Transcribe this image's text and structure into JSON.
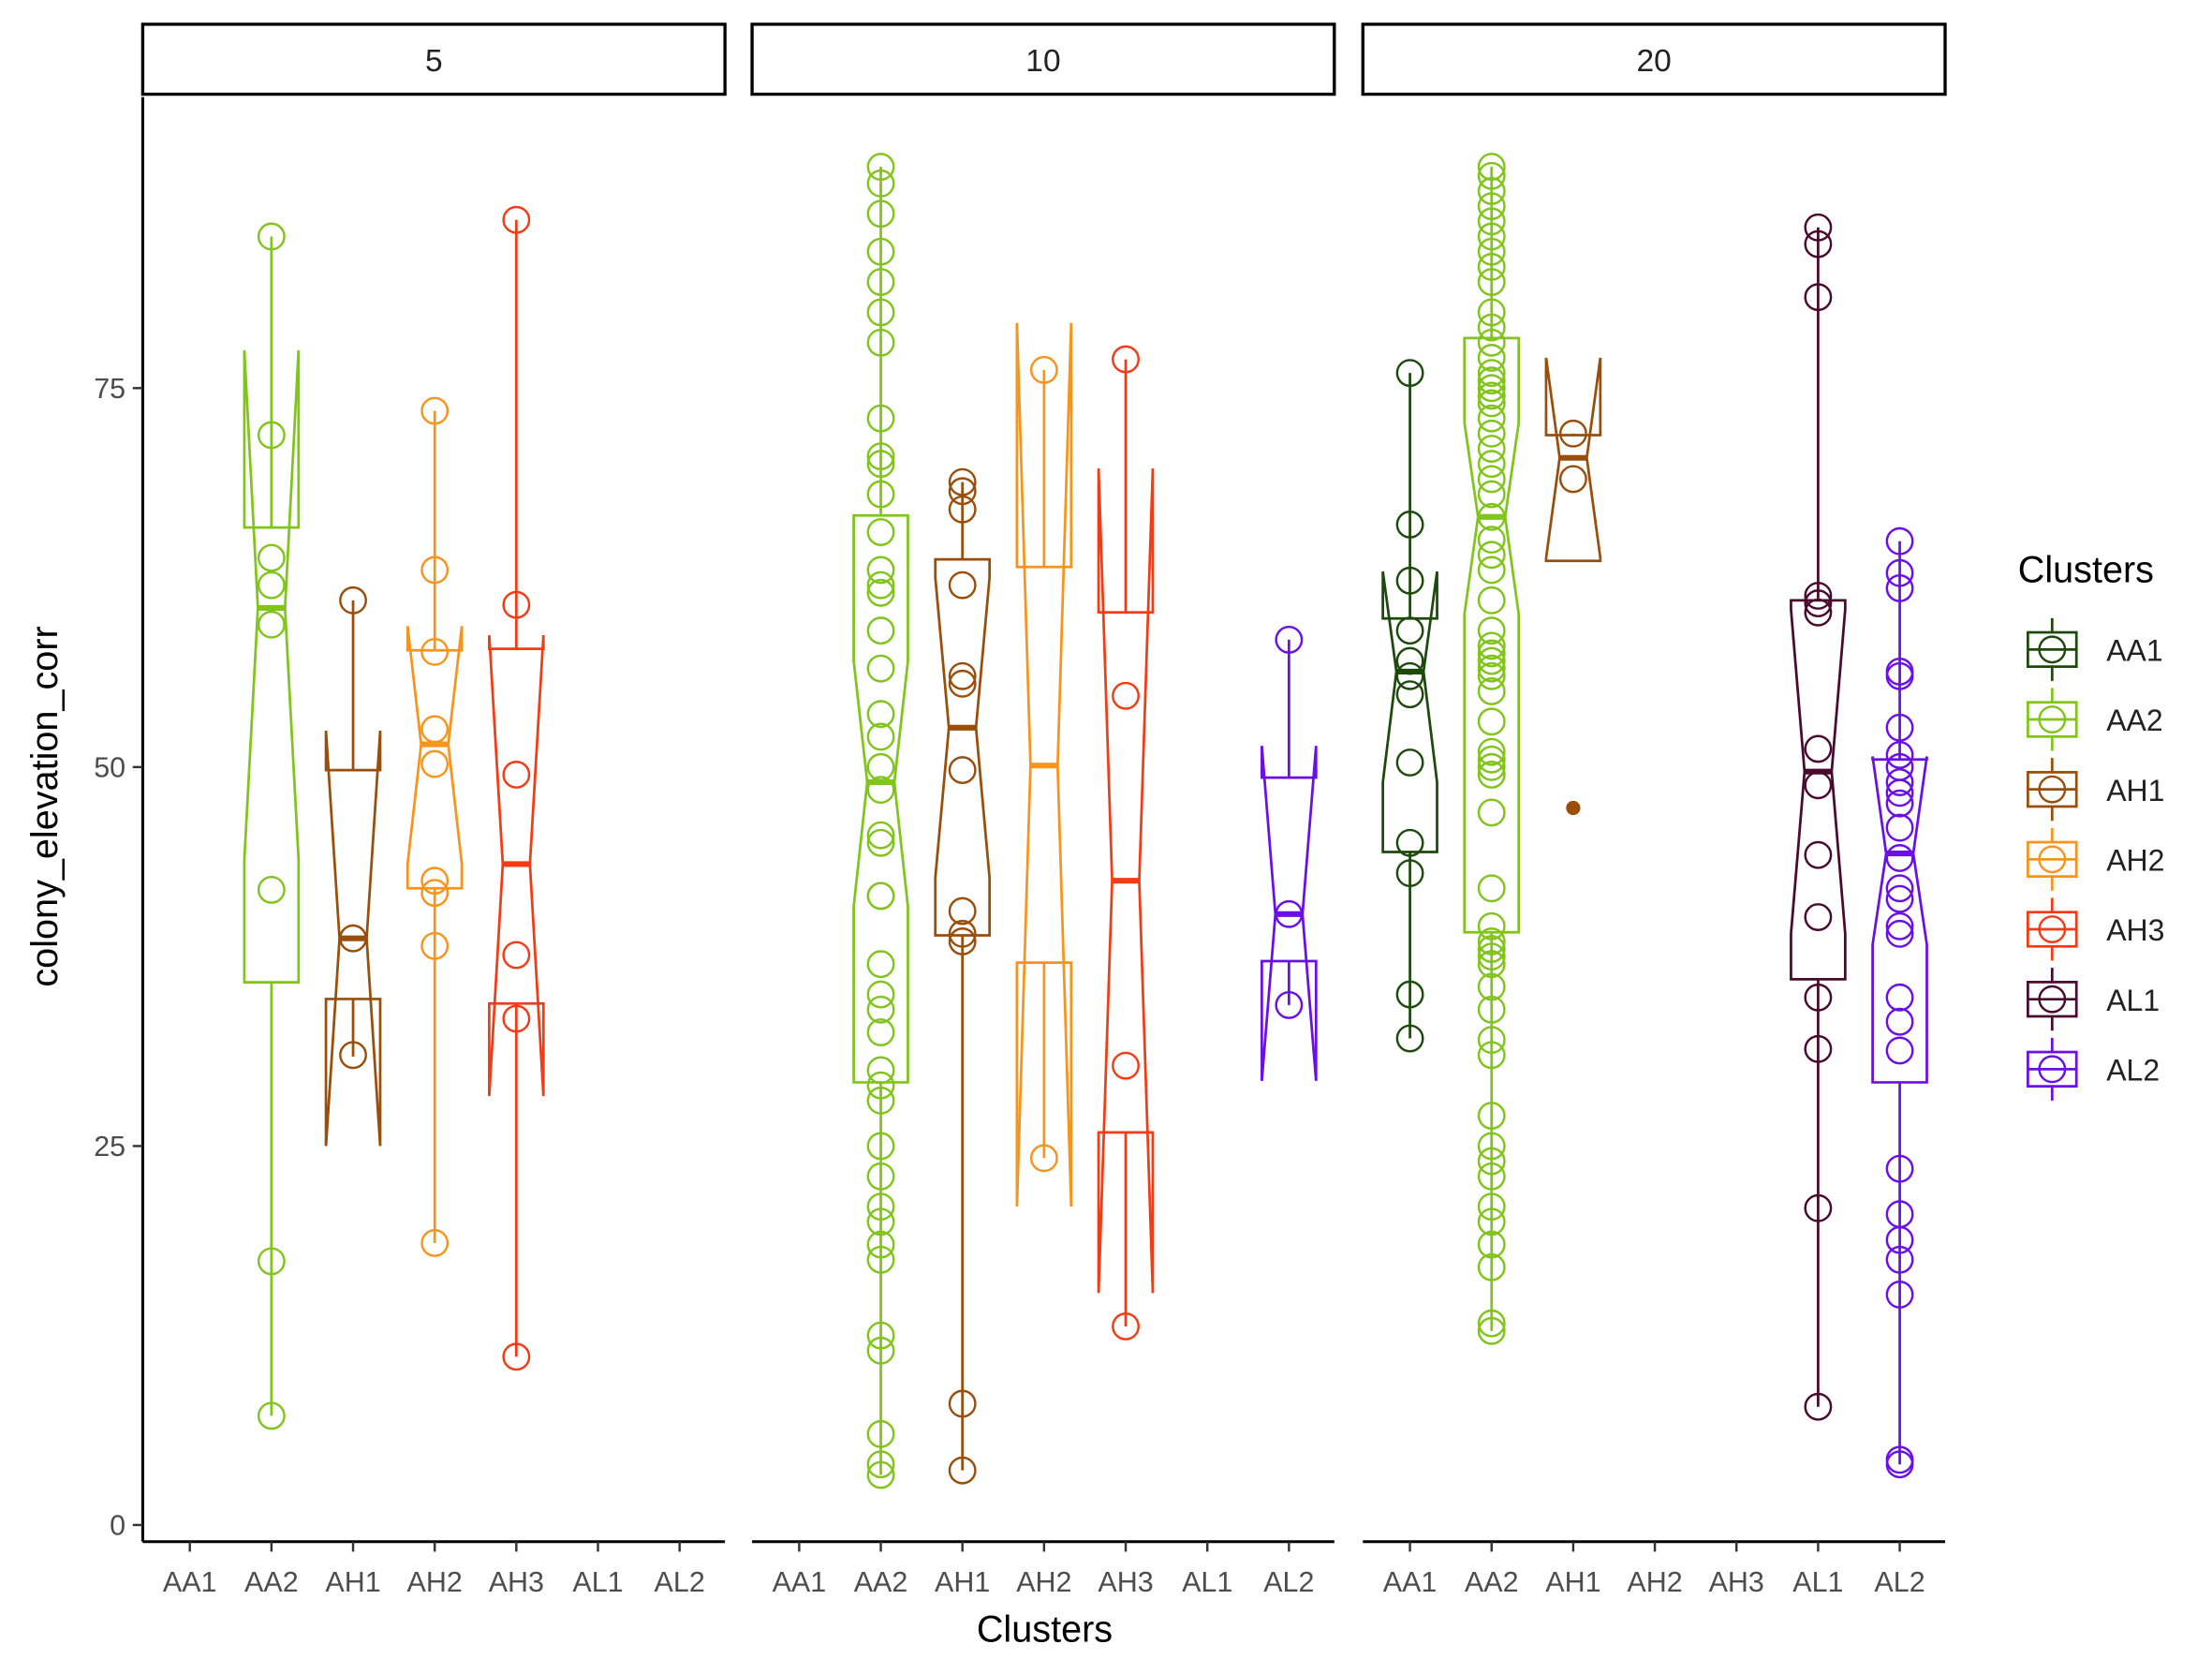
{
  "chart_data": {
    "type": "box",
    "x_label": "Clusters",
    "y_label": "colony_elevation_corr",
    "legend_title": "Clusters",
    "categories": [
      "AA1",
      "AA2",
      "AH1",
      "AH2",
      "AH3",
      "AL1",
      "AL2"
    ],
    "series": [
      {
        "name": "AA1",
        "color": "#1d4a0c"
      },
      {
        "name": "AA2",
        "color": "#80c41c"
      },
      {
        "name": "AH1",
        "color": "#9a4e0c"
      },
      {
        "name": "AH2",
        "color": "#f7941d"
      },
      {
        "name": "AH3",
        "color": "#f23c16"
      },
      {
        "name": "AL1",
        "color": "#4a0a30"
      },
      {
        "name": "AL2",
        "color": "#6a10e6"
      }
    ],
    "ylim": [
      -1.1,
      94.2
    ],
    "yticks": [
      0,
      25,
      50,
      75
    ],
    "facets": [
      {
        "label": "5",
        "boxes": [
          null,
          {
            "min": 7.2,
            "q1": 35.8,
            "median": 60.5,
            "q3": 65.8,
            "max": 85.0,
            "notch_low": 43.9,
            "notch_high": 77.5,
            "outliers": [],
            "points": [
              85.0,
              71.9,
              63.8,
              62.0,
              59.4,
              41.9,
              17.4,
              7.2
            ]
          },
          {
            "min": 30.9,
            "q1": 34.7,
            "median": 38.7,
            "q3": 49.8,
            "max": 61.0,
            "notch_low": 25.0,
            "notch_high": 52.4,
            "outliers": [],
            "points": [
              61.0,
              38.7,
              31.0
            ]
          },
          {
            "min": 18.6,
            "q1": 42.0,
            "median": 51.5,
            "q3": 57.7,
            "max": 73.5,
            "notch_low": 43.6,
            "notch_high": 59.3,
            "outliers": [],
            "points": [
              73.5,
              63.0,
              57.6,
              52.5,
              50.2,
              42.5,
              41.7,
              38.2,
              18.6
            ]
          },
          {
            "min": 11.1,
            "q1": 34.4,
            "median": 43.6,
            "q3": 57.8,
            "max": 86.1,
            "notch_low": 28.3,
            "notch_high": 58.7,
            "outliers": [],
            "points": [
              86.1,
              60.7,
              49.5,
              37.6,
              33.4,
              11.1
            ]
          },
          null,
          null
        ]
      },
      {
        "label": "10",
        "boxes": [
          null,
          {
            "min": 3.3,
            "q1": 29.2,
            "median": 49.0,
            "q3": 66.6,
            "max": 89.6,
            "notch_low": 40.8,
            "notch_high": 57.0,
            "outliers": [],
            "points": [
              89.6,
              88.5,
              86.5,
              84,
              82,
              80,
              78,
              73,
              70.5,
              70,
              68,
              65.5,
              63,
              62,
              61.5,
              59,
              56.5,
              53.5,
              52,
              50,
              48.5,
              45.5,
              45,
              41.5,
              41.5,
              37,
              35,
              34,
              32.5,
              30,
              29,
              28,
              25,
              23,
              21,
              20,
              18.5,
              17.5,
              12.5,
              11.5,
              6,
              4,
              3.3
            ]
          },
          {
            "min": 3.6,
            "q1": 38.9,
            "median": 52.6,
            "q3": 63.7,
            "max": 68.8,
            "notch_low": 42.7,
            "notch_high": 62.5,
            "outliers": [],
            "points": [
              68.8,
              68.2,
              67,
              62,
              56,
              55.5,
              49.8,
              40.5,
              39,
              38.5,
              8,
              3.6
            ]
          },
          {
            "min": 24.2,
            "q1": 37.1,
            "median": 50.1,
            "q3": 63.2,
            "max": 76.2,
            "notch_low": 21.0,
            "notch_high": 79.3,
            "outliers": [],
            "points": [
              76.2,
              24.2
            ]
          },
          {
            "min": 13.1,
            "q1": 25.9,
            "median": 42.5,
            "q3": 60.2,
            "max": 76.9,
            "notch_low": 15.3,
            "notch_high": 69.7,
            "outliers": [],
            "points": [
              76.9,
              54.7,
              30.3,
              13.1
            ]
          },
          null,
          {
            "min": 34.3,
            "q1": 37.2,
            "median": 40.3,
            "q3": 49.3,
            "max": 58.4,
            "notch_low": 29.3,
            "notch_high": 51.4,
            "outliers": [],
            "points": [
              58.4,
              40.3,
              34.3
            ]
          }
        ]
      },
      {
        "label": "20",
        "boxes": [
          {
            "min": 32.1,
            "q1": 44.4,
            "median": 56.3,
            "q3": 59.8,
            "max": 76.0,
            "notch_low": 49.0,
            "notch_high": 62.9,
            "outliers": [],
            "points": [
              76,
              66,
              62.3,
              59,
              57,
              56,
              54.8,
              50.3,
              45,
              43,
              35,
              32.1
            ]
          },
          {
            "min": 12.8,
            "q1": 39.1,
            "median": 66.5,
            "q3": 78.3,
            "max": 89.6,
            "notch_low": 60.1,
            "notch_high": 72.7,
            "outliers": [],
            "points": [
              89.6,
              89,
              88,
              87,
              86,
              85,
              84,
              83,
              82,
              80,
              79,
              78,
              77,
              76,
              75.5,
              75,
              74.5,
              74,
              73,
              72,
              71,
              70,
              69,
              68,
              66.5,
              65,
              64,
              63,
              61,
              59,
              58,
              57.5,
              57,
              56.5,
              56,
              55,
              53,
              51,
              50.5,
              50,
              49.5,
              47,
              42,
              39.5,
              38.5,
              38,
              37.5,
              37,
              35.5,
              34,
              32,
              31,
              27,
              25,
              24,
              23,
              21,
              20,
              18.5,
              17,
              13.3,
              12.8
            ]
          },
          {
            "min": 63.6,
            "q1": 63.6,
            "median": 70.4,
            "q3": 71.9,
            "max": 72.0,
            "notch_low": 63.8,
            "notch_high": 77.0,
            "outliers": [
              47.3
            ],
            "points": [
              72.0,
              69.0
            ]
          },
          null,
          null,
          {
            "min": 7.8,
            "q1": 36.0,
            "median": 49.7,
            "q3": 61.0,
            "max": 85.6,
            "notch_low": 39.0,
            "notch_high": 60.4,
            "outliers": [],
            "points": [
              85.6,
              84.5,
              81,
              61.3,
              60.8,
              60.2,
              51.2,
              48.8,
              44.2,
              40.1,
              34.8,
              31.4,
              20.9,
              7.8
            ]
          },
          {
            "min": 4.0,
            "q1": 29.2,
            "median": 44.3,
            "q3": 50.5,
            "max": 64.9,
            "notch_low": 38.3,
            "notch_high": 50.7,
            "outliers": [],
            "points": [
              64.9,
              62.8,
              61.8,
              56.3,
              56,
              52.6,
              50.8,
              50,
              49,
              48.3,
              47.6,
              46,
              44,
              42,
              41.3,
              39.5,
              39,
              34.8,
              33.2,
              31.3,
              23.5,
              20.5,
              18.8,
              17.5,
              15.2,
              4.3,
              4
            ]
          }
        ]
      }
    ]
  }
}
